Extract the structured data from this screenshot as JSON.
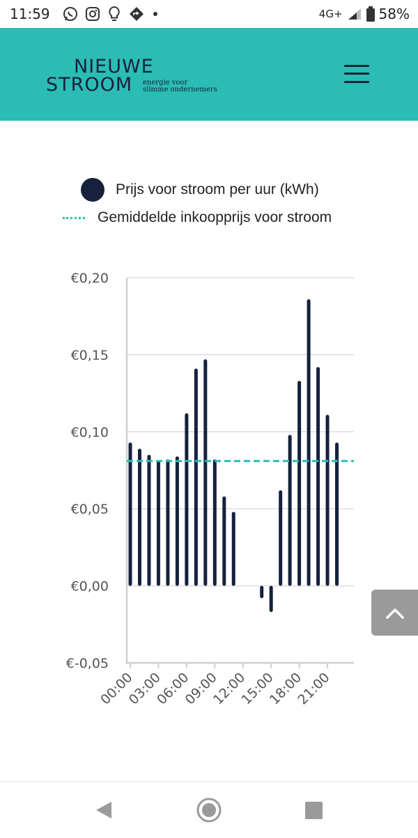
{
  "status_bar": {
    "time": "11:59",
    "network": "4G+",
    "battery": "58%",
    "icons": [
      "whatsapp-icon",
      "instagram-icon",
      "lightbulb-icon",
      "navigation-icon",
      "dot-icon",
      "signal-icon",
      "battery-icon"
    ]
  },
  "header": {
    "logo_line1": "NIEUWE",
    "logo_line2": "STROOM",
    "tagline_1": "energie voor",
    "tagline_2": "slimme ondernemers",
    "menu_icon": "hamburger-menu-icon",
    "background": "#2bbcb3"
  },
  "legend": {
    "price_label": "Prijs voor stroom per uur (kWh)",
    "average_label": "Gemiddelde inkoopprijs voor stroom"
  },
  "chart_data": {
    "type": "bar",
    "categories": [
      "00:00",
      "01:00",
      "02:00",
      "03:00",
      "04:00",
      "05:00",
      "06:00",
      "07:00",
      "08:00",
      "09:00",
      "10:00",
      "11:00",
      "12:00",
      "13:00",
      "14:00",
      "15:00",
      "16:00",
      "17:00",
      "18:00",
      "19:00",
      "20:00",
      "21:00",
      "22:00",
      "23:00"
    ],
    "x_tick_labels": [
      "00:00",
      "03:00",
      "06:00",
      "09:00",
      "12:00",
      "15:00",
      "18:00",
      "21:00"
    ],
    "series": [
      {
        "name": "Prijs voor stroom per uur (kWh)",
        "color": "#15213d",
        "values": [
          0.093,
          0.089,
          0.085,
          0.081,
          0.082,
          0.084,
          0.112,
          0.141,
          0.147,
          0.082,
          0.058,
          0.048,
          0.0,
          0.0,
          -0.008,
          -0.017,
          0.062,
          0.098,
          0.133,
          0.186,
          0.142,
          0.111,
          0.093,
          0.0
        ]
      }
    ],
    "average": {
      "name": "Gemiddelde inkoopprijs voor stroom",
      "value": 0.081,
      "color": "#2bbcb3"
    },
    "y_tick_labels": [
      "€-0,05",
      "€0,00",
      "€0,05",
      "€0,10",
      "€0,15",
      "€0,20"
    ],
    "y_ticks": [
      -0.05,
      0.0,
      0.05,
      0.1,
      0.15,
      0.2
    ],
    "ylim": [
      -0.05,
      0.2
    ],
    "grid": true,
    "legend_position": "top"
  },
  "scroll_top_icon": "chevron-up-icon",
  "nav": {
    "back_icon": "back-triangle-icon",
    "home_icon": "home-circle-icon",
    "recent_icon": "recent-apps-square-icon"
  }
}
